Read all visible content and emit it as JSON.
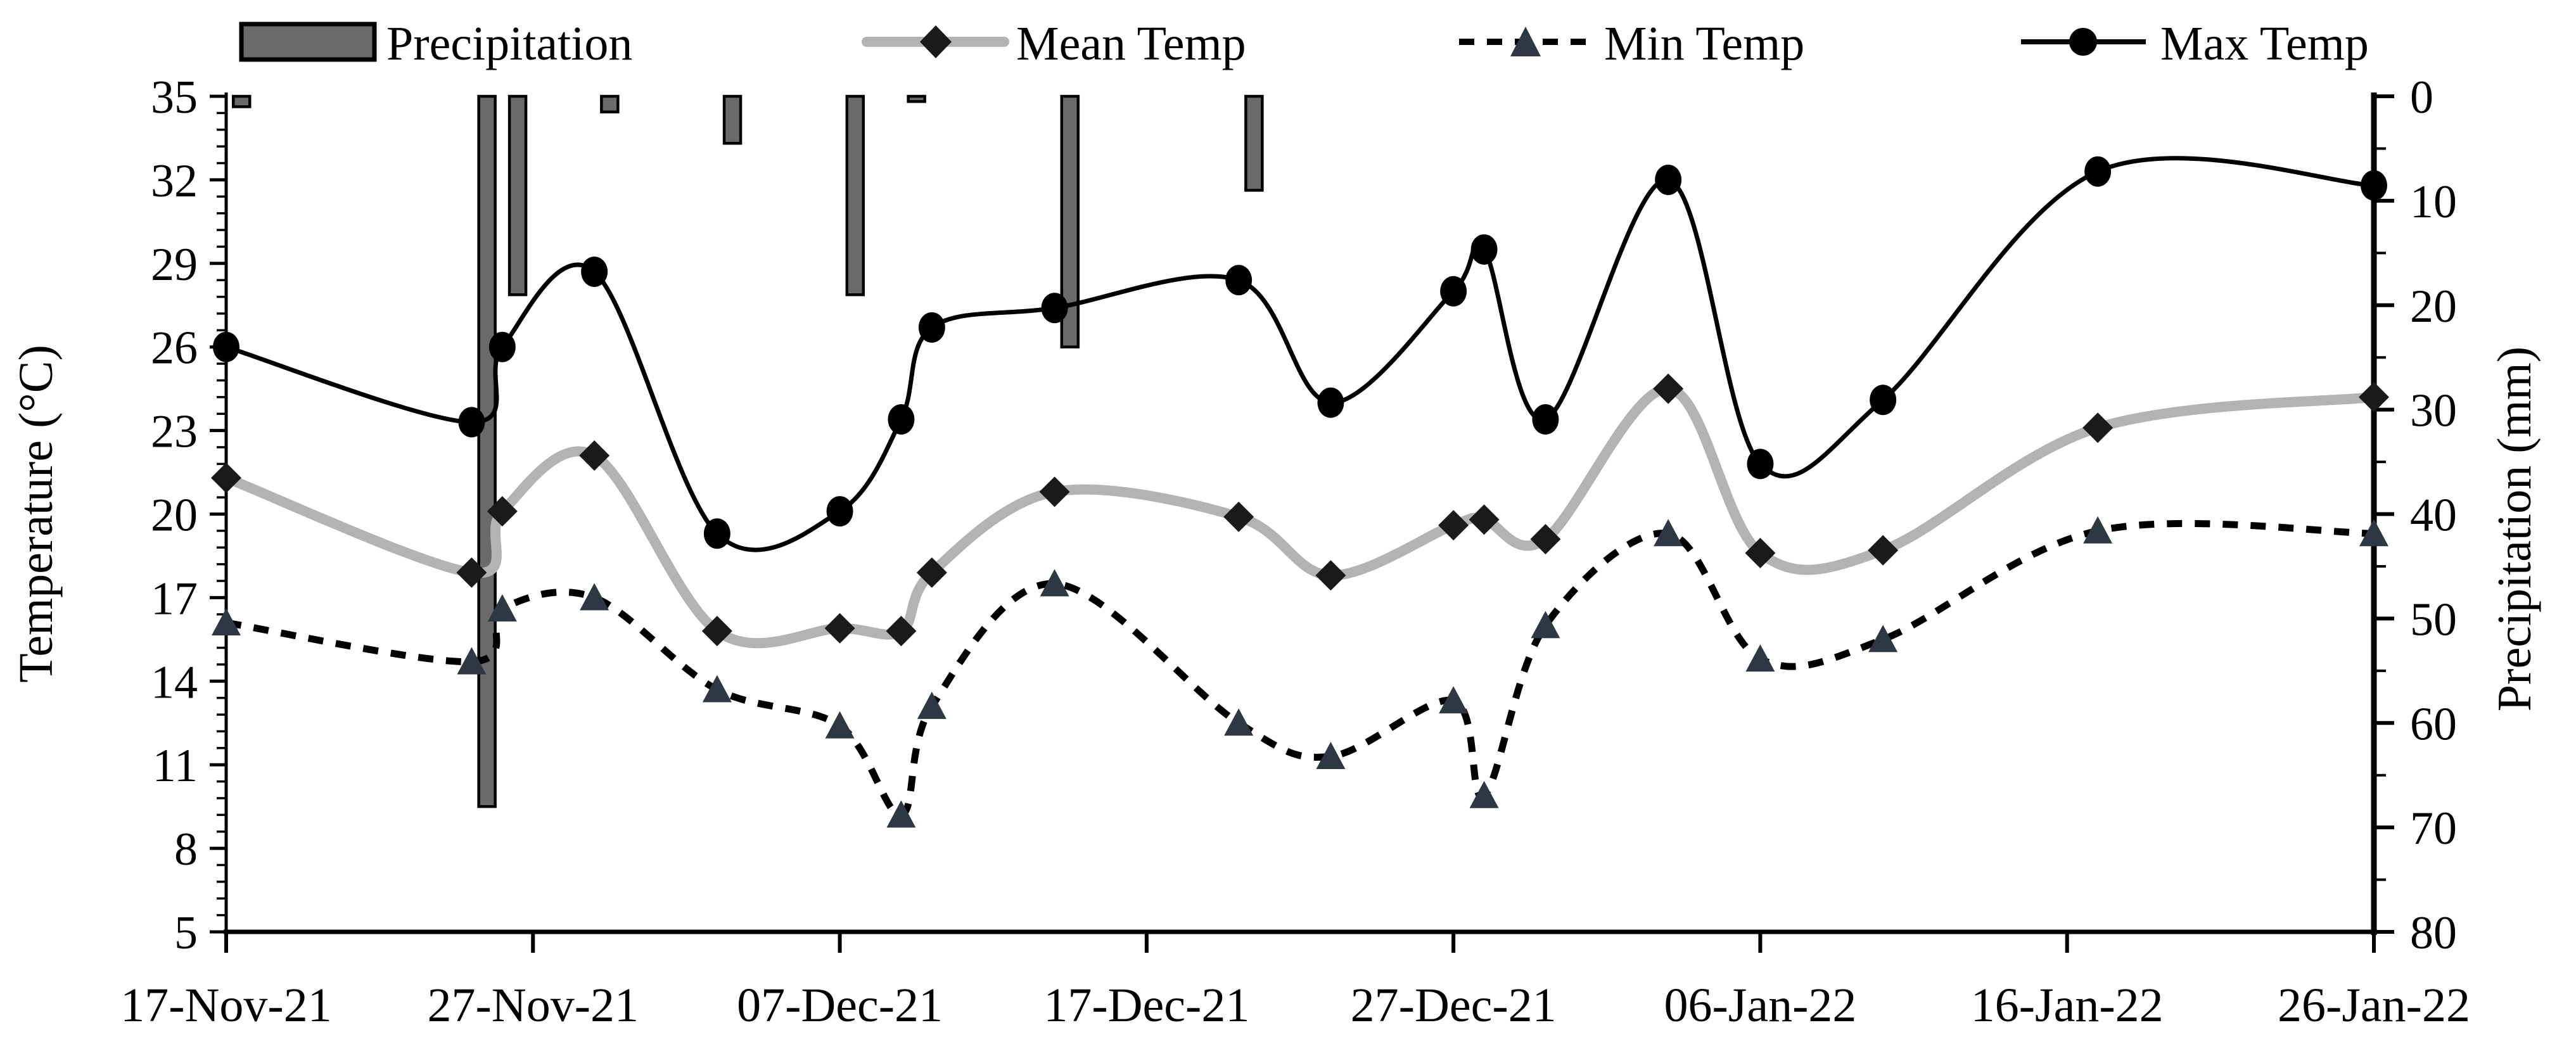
{
  "chart_data": {
    "type": "combo-line-bar",
    "title": "",
    "x_axis": {
      "tick_labels": [
        "17-Nov-21",
        "27-Nov-21",
        "07-Dec-21",
        "17-Dec-21",
        "27-Dec-21",
        "06-Jan-22",
        "16-Jan-22",
        "26-Jan-22"
      ],
      "tick_days": [
        0,
        10,
        20,
        30,
        40,
        50,
        60,
        70
      ],
      "range_days": [
        0,
        70
      ]
    },
    "y_left": {
      "title": "Temperature (°C)",
      "min": 5,
      "max": 35,
      "major_step": 3,
      "minor_step": 0.6,
      "tick_labels": [
        "35",
        "32",
        "29",
        "26",
        "23",
        "20",
        "17",
        "14",
        "11",
        "8",
        "5"
      ]
    },
    "y_right": {
      "title": "Precipitation (mm)",
      "min": 0,
      "max": 80,
      "major_step": 10,
      "minor_step": 5,
      "inverted": true,
      "tick_labels": [
        "0",
        "10",
        "20",
        "30",
        "40",
        "50",
        "60",
        "70",
        "80"
      ]
    },
    "legend": [
      {
        "name": "Precipitation",
        "type": "bar",
        "color": "#6a6a6a"
      },
      {
        "name": "Mean Temp",
        "type": "line-diamond",
        "color": "#b3b3b3",
        "marker_color": "#1a1a1a"
      },
      {
        "name": "Min Temp",
        "type": "dash-triangle",
        "color": "#000000",
        "marker_color": "#2e3744"
      },
      {
        "name": "Max Temp",
        "type": "line-circle",
        "color": "#000000",
        "marker_color": "#000000"
      }
    ],
    "grid": "off",
    "legend_position": "top",
    "observations": {
      "dates": [
        "17-Nov-21",
        "25-Nov-21",
        "26-Nov-21",
        "29-Nov-21",
        "03-Dec-21",
        "07-Dec-21",
        "09-Dec-21",
        "10-Dec-21",
        "14-Dec-21",
        "20-Dec-21",
        "23-Dec-21",
        "27-Dec-21",
        "28-Dec-21",
        "30-Dec-21",
        "03-Jan-22",
        "06-Jan-22",
        "10-Jan-22",
        "17-Jan-22",
        "26-Jan-22"
      ],
      "day_offsets": [
        0,
        8,
        9,
        12,
        16,
        20,
        22,
        23,
        27,
        33,
        36,
        40,
        41,
        43,
        47,
        50,
        54,
        61,
        70
      ],
      "max_temp_c": [
        26.0,
        23.3,
        26.0,
        28.7,
        19.3,
        20.1,
        23.4,
        26.7,
        27.4,
        28.4,
        24.0,
        28.0,
        29.5,
        23.4,
        32.0,
        21.8,
        24.1,
        32.3,
        31.8
      ],
      "mean_temp_c": [
        21.3,
        17.9,
        20.1,
        22.1,
        15.8,
        15.9,
        15.8,
        17.9,
        20.8,
        19.9,
        17.8,
        19.6,
        19.8,
        19.1,
        24.5,
        18.6,
        18.7,
        23.1,
        24.2
      ],
      "min_temp_c": [
        16.1,
        14.7,
        16.6,
        17.0,
        13.7,
        12.4,
        9.2,
        13.1,
        17.5,
        12.5,
        11.3,
        13.3,
        9.9,
        16.0,
        19.3,
        14.8,
        15.5,
        19.4,
        19.3
      ],
      "precipitation_mm": [
        1,
        68,
        19,
        1.5,
        4.5,
        19,
        0.5,
        0,
        24,
        9,
        0,
        0,
        0,
        0,
        0,
        0,
        0,
        0,
        0
      ]
    }
  }
}
